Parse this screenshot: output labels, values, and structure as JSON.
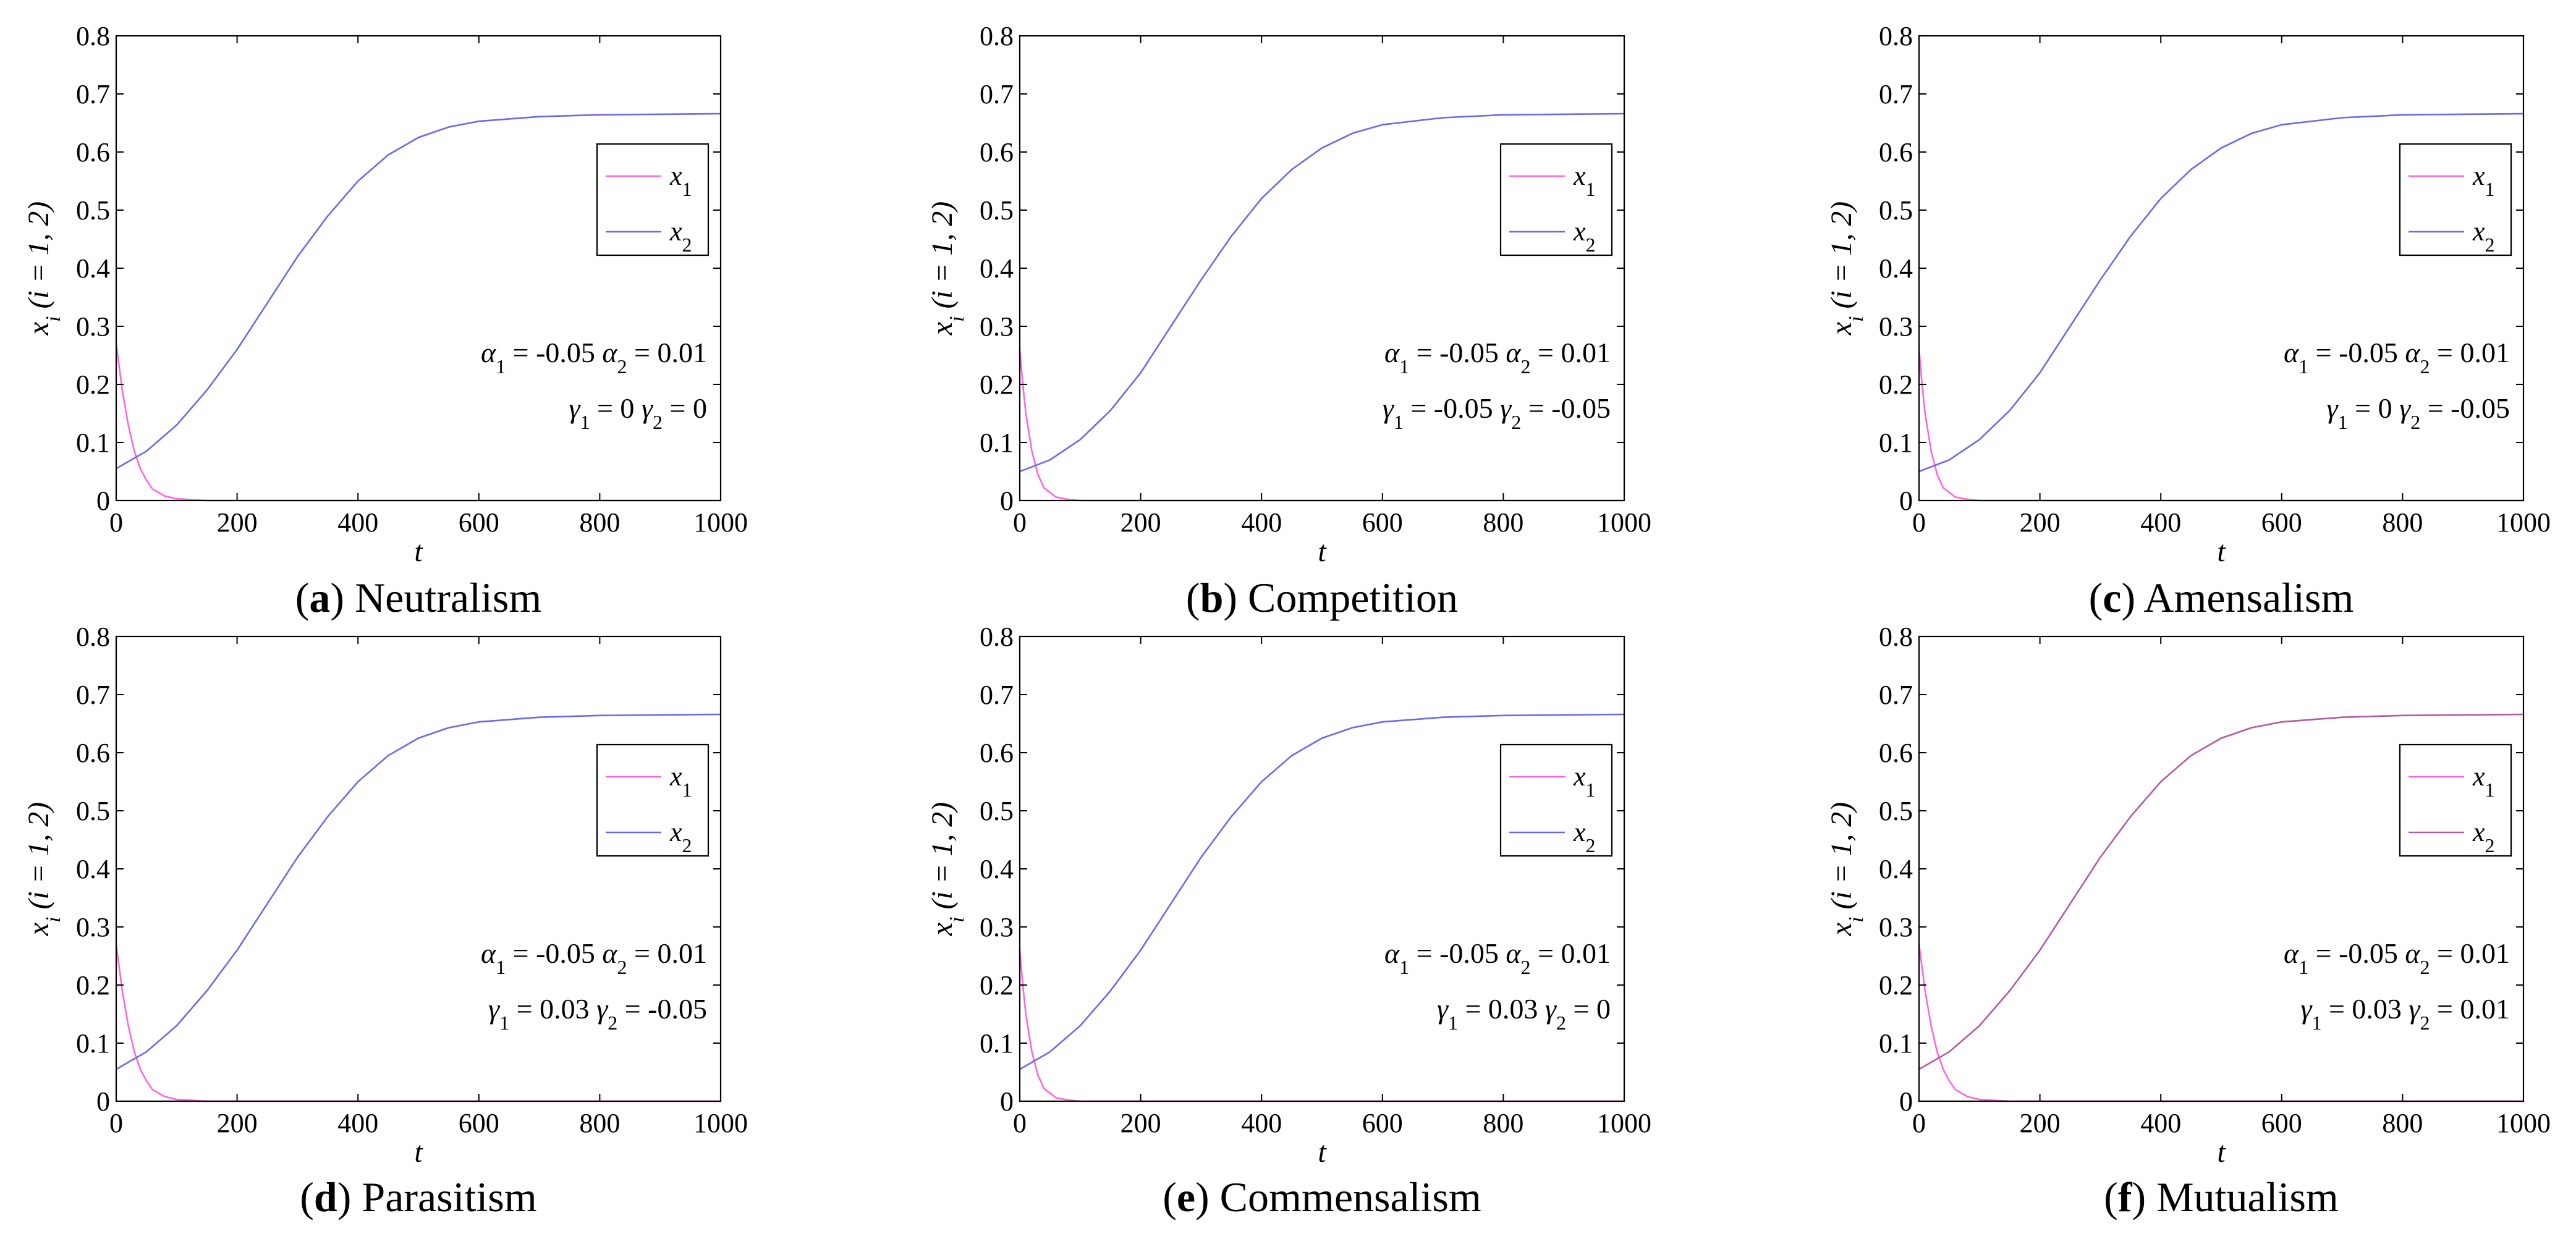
{
  "figure": {
    "ylabel_main": "x",
    "ylabel_sub": "i",
    "ylabel_rest": " (i = 1, 2)",
    "xlabel": "t"
  },
  "colors": {
    "x1": "#ff66dd",
    "x2": "#6a6ae6",
    "x2_panel_f": "#b25aa0",
    "axis": "#000000"
  },
  "chart_data": [
    {
      "type": "line",
      "caption_letter": "a",
      "caption_name": "Neutralism",
      "xlim": [
        0,
        1000
      ],
      "ylim": [
        0,
        0.8
      ],
      "xticks": [
        "0",
        "200",
        "400",
        "600",
        "800",
        "1000"
      ],
      "yticks": [
        "0",
        "0.1",
        "0.2",
        "0.3",
        "0.4",
        "0.5",
        "0.6",
        "0.7",
        "0.8"
      ],
      "xlabel": "t",
      "ylabel": "x_i (i = 1, 2)",
      "legend": [
        "x1",
        "x2"
      ],
      "legend_sub": [
        "1",
        "2"
      ],
      "annotations": [
        "α1 = -0.05   α2 = 0.01",
        "γ1 = 0   γ2 = 0"
      ],
      "ann": {
        "line1": [
          {
            "sym": "α",
            "sub": "1",
            "val": " = -0.05   "
          },
          {
            "sym": "α",
            "sub": "2",
            "val": " = 0.01"
          }
        ],
        "line2": [
          {
            "sym": "γ",
            "sub": "1",
            "val": " = 0   "
          },
          {
            "sym": "γ",
            "sub": "2",
            "val": " = 0"
          }
        ]
      },
      "series": [
        {
          "name": "x1",
          "x": [
            0,
            10,
            20,
            30,
            40,
            50,
            60,
            80,
            100,
            150,
            1000
          ],
          "y": [
            0.27,
            0.19,
            0.13,
            0.085,
            0.055,
            0.035,
            0.02,
            0.008,
            0.003,
            0.0,
            0.0
          ]
        },
        {
          "name": "x2",
          "x": [
            0,
            50,
            100,
            150,
            200,
            250,
            300,
            350,
            400,
            450,
            500,
            550,
            600,
            700,
            800,
            900,
            1000
          ],
          "y": [
            0.055,
            0.085,
            0.13,
            0.19,
            0.26,
            0.34,
            0.42,
            0.49,
            0.55,
            0.595,
            0.625,
            0.643,
            0.653,
            0.661,
            0.664,
            0.665,
            0.666
          ]
        }
      ]
    },
    {
      "type": "line",
      "caption_letter": "b",
      "caption_name": "Competition",
      "xlim": [
        0,
        1000
      ],
      "ylim": [
        0,
        0.8
      ],
      "xticks": [
        "0",
        "200",
        "400",
        "600",
        "800",
        "1000"
      ],
      "yticks": [
        "0",
        "0.1",
        "0.2",
        "0.3",
        "0.4",
        "0.5",
        "0.6",
        "0.7",
        "0.8"
      ],
      "xlabel": "t",
      "ylabel": "x_i (i = 1, 2)",
      "legend": [
        "x1",
        "x2"
      ],
      "legend_sub": [
        "1",
        "2"
      ],
      "annotations": [
        "α1 = -0.05   α2 = 0.01",
        "γ1 = -0.05   γ2 = -0.05"
      ],
      "ann": {
        "line1": [
          {
            "sym": "α",
            "sub": "1",
            "val": " = -0.05   "
          },
          {
            "sym": "α",
            "sub": "2",
            "val": " = 0.01"
          }
        ],
        "line2": [
          {
            "sym": "γ",
            "sub": "1",
            "val": " = -0.05   "
          },
          {
            "sym": "γ",
            "sub": "2",
            "val": " = -0.05"
          }
        ]
      },
      "series": [
        {
          "name": "x1",
          "x": [
            0,
            5,
            10,
            20,
            30,
            40,
            60,
            80,
            100,
            1000
          ],
          "y": [
            0.26,
            0.2,
            0.15,
            0.085,
            0.045,
            0.022,
            0.006,
            0.002,
            0.0,
            0.0
          ]
        },
        {
          "name": "x2",
          "x": [
            0,
            50,
            100,
            150,
            200,
            250,
            300,
            350,
            400,
            450,
            500,
            550,
            600,
            700,
            800,
            900,
            1000
          ],
          "y": [
            0.05,
            0.07,
            0.105,
            0.155,
            0.22,
            0.3,
            0.38,
            0.455,
            0.52,
            0.57,
            0.607,
            0.632,
            0.647,
            0.659,
            0.664,
            0.665,
            0.666
          ]
        }
      ]
    },
    {
      "type": "line",
      "caption_letter": "c",
      "caption_name": "Amensalism",
      "xlim": [
        0,
        1000
      ],
      "ylim": [
        0,
        0.8
      ],
      "xticks": [
        "0",
        "200",
        "400",
        "600",
        "800",
        "1000"
      ],
      "yticks": [
        "0",
        "0.1",
        "0.2",
        "0.3",
        "0.4",
        "0.5",
        "0.6",
        "0.7",
        "0.8"
      ],
      "xlabel": "t",
      "ylabel": "x_i (i = 1, 2)",
      "legend": [
        "x1",
        "x2"
      ],
      "legend_sub": [
        "1",
        "2"
      ],
      "annotations": [
        "α1 = -0.05   α2 = 0.01",
        "γ1 = 0   γ2 = -0.05"
      ],
      "ann": {
        "line1": [
          {
            "sym": "α",
            "sub": "1",
            "val": " = -0.05   "
          },
          {
            "sym": "α",
            "sub": "2",
            "val": " = 0.01"
          }
        ],
        "line2": [
          {
            "sym": "γ",
            "sub": "1",
            "val": " = 0   "
          },
          {
            "sym": "γ",
            "sub": "2",
            "val": " = -0.05"
          }
        ]
      },
      "series": [
        {
          "name": "x1",
          "x": [
            0,
            5,
            10,
            20,
            30,
            40,
            60,
            80,
            100,
            1000
          ],
          "y": [
            0.26,
            0.2,
            0.15,
            0.085,
            0.045,
            0.022,
            0.006,
            0.002,
            0.0,
            0.0
          ]
        },
        {
          "name": "x2",
          "x": [
            0,
            50,
            100,
            150,
            200,
            250,
            300,
            350,
            400,
            450,
            500,
            550,
            600,
            700,
            800,
            900,
            1000
          ],
          "y": [
            0.05,
            0.07,
            0.105,
            0.155,
            0.22,
            0.3,
            0.38,
            0.455,
            0.52,
            0.57,
            0.607,
            0.632,
            0.647,
            0.659,
            0.664,
            0.665,
            0.666
          ]
        }
      ]
    },
    {
      "type": "line",
      "caption_letter": "d",
      "caption_name": "Parasitism",
      "xlim": [
        0,
        1000
      ],
      "ylim": [
        0,
        0.8
      ],
      "xticks": [
        "0",
        "200",
        "400",
        "600",
        "800",
        "1000"
      ],
      "yticks": [
        "0",
        "0.1",
        "0.2",
        "0.3",
        "0.4",
        "0.5",
        "0.6",
        "0.7",
        "0.8"
      ],
      "xlabel": "t",
      "ylabel": "x_i (i = 1, 2)",
      "legend": [
        "x1",
        "x2"
      ],
      "legend_sub": [
        "1",
        "2"
      ],
      "annotations": [
        "α1 = -0.05   α2 = 0.01",
        "γ1 = 0.03   γ2 = -0.05"
      ],
      "ann": {
        "line1": [
          {
            "sym": "α",
            "sub": "1",
            "val": " = -0.05   "
          },
          {
            "sym": "α",
            "sub": "2",
            "val": " = 0.01"
          }
        ],
        "line2": [
          {
            "sym": "γ",
            "sub": "1",
            "val": " = 0.03   "
          },
          {
            "sym": "γ",
            "sub": "2",
            "val": " = -0.05"
          }
        ]
      },
      "series": [
        {
          "name": "x1",
          "x": [
            0,
            10,
            20,
            30,
            40,
            50,
            60,
            80,
            100,
            150,
            1000
          ],
          "y": [
            0.27,
            0.19,
            0.13,
            0.085,
            0.055,
            0.035,
            0.02,
            0.008,
            0.003,
            0.0,
            0.0
          ]
        },
        {
          "name": "x2",
          "x": [
            0,
            50,
            100,
            150,
            200,
            250,
            300,
            350,
            400,
            450,
            500,
            550,
            600,
            700,
            800,
            900,
            1000
          ],
          "y": [
            0.055,
            0.085,
            0.13,
            0.19,
            0.26,
            0.34,
            0.42,
            0.49,
            0.55,
            0.595,
            0.625,
            0.643,
            0.653,
            0.661,
            0.664,
            0.665,
            0.666
          ]
        }
      ]
    },
    {
      "type": "line",
      "caption_letter": "e",
      "caption_name": "Commensalism",
      "xlim": [
        0,
        1000
      ],
      "ylim": [
        0,
        0.8
      ],
      "xticks": [
        "0",
        "200",
        "400",
        "600",
        "800",
        "1000"
      ],
      "yticks": [
        "0",
        "0.1",
        "0.2",
        "0.3",
        "0.4",
        "0.5",
        "0.6",
        "0.7",
        "0.8"
      ],
      "xlabel": "t",
      "ylabel": "x_i (i = 1, 2)",
      "legend": [
        "x1",
        "x2"
      ],
      "legend_sub": [
        "1",
        "2"
      ],
      "annotations": [
        "α1 = -0.05   α2 = 0.01",
        "γ1 = 0.03   γ2 = 0"
      ],
      "ann": {
        "line1": [
          {
            "sym": "α",
            "sub": "1",
            "val": " = -0.05   "
          },
          {
            "sym": "α",
            "sub": "2",
            "val": " = 0.01"
          }
        ],
        "line2": [
          {
            "sym": "γ",
            "sub": "1",
            "val": " = 0.03   "
          },
          {
            "sym": "γ",
            "sub": "2",
            "val": " = 0"
          }
        ]
      },
      "series": [
        {
          "name": "x1",
          "x": [
            0,
            5,
            10,
            20,
            30,
            40,
            60,
            80,
            100,
            1000
          ],
          "y": [
            0.26,
            0.2,
            0.15,
            0.085,
            0.045,
            0.022,
            0.006,
            0.002,
            0.0,
            0.0
          ]
        },
        {
          "name": "x2",
          "x": [
            0,
            50,
            100,
            150,
            200,
            250,
            300,
            350,
            400,
            450,
            500,
            550,
            600,
            700,
            800,
            900,
            1000
          ],
          "y": [
            0.055,
            0.085,
            0.13,
            0.19,
            0.26,
            0.34,
            0.42,
            0.49,
            0.55,
            0.595,
            0.625,
            0.643,
            0.653,
            0.661,
            0.664,
            0.665,
            0.666
          ]
        }
      ]
    },
    {
      "type": "line",
      "caption_letter": "f",
      "caption_name": "Mutualism",
      "xlim": [
        0,
        1000
      ],
      "ylim": [
        0,
        0.8
      ],
      "xticks": [
        "0",
        "200",
        "400",
        "600",
        "800",
        "1000"
      ],
      "yticks": [
        "0",
        "0.1",
        "0.2",
        "0.3",
        "0.4",
        "0.5",
        "0.6",
        "0.7",
        "0.8"
      ],
      "xlabel": "t",
      "ylabel": "x_i (i = 1, 2)",
      "legend": [
        "x1",
        "x2"
      ],
      "legend_sub": [
        "1",
        "2"
      ],
      "annotations": [
        "α1 = -0.05   α2 = 0.01",
        "γ1 = 0.03   γ2 = 0.01"
      ],
      "ann": {
        "line1": [
          {
            "sym": "α",
            "sub": "1",
            "val": " = -0.05   "
          },
          {
            "sym": "α",
            "sub": "2",
            "val": " = 0.01"
          }
        ],
        "line2": [
          {
            "sym": "γ",
            "sub": "1",
            "val": " = 0.03   "
          },
          {
            "sym": "γ",
            "sub": "2",
            "val": " = 0.01"
          }
        ]
      },
      "series": [
        {
          "name": "x1",
          "x": [
            0,
            10,
            20,
            30,
            40,
            50,
            60,
            80,
            100,
            150,
            1000
          ],
          "y": [
            0.27,
            0.19,
            0.13,
            0.085,
            0.055,
            0.035,
            0.02,
            0.008,
            0.003,
            0.0,
            0.0
          ]
        },
        {
          "name": "x2",
          "x": [
            0,
            50,
            100,
            150,
            200,
            250,
            300,
            350,
            400,
            450,
            500,
            550,
            600,
            700,
            800,
            900,
            1000
          ],
          "y": [
            0.055,
            0.085,
            0.13,
            0.19,
            0.26,
            0.34,
            0.42,
            0.49,
            0.55,
            0.595,
            0.625,
            0.643,
            0.653,
            0.661,
            0.664,
            0.665,
            0.666
          ]
        }
      ]
    }
  ]
}
